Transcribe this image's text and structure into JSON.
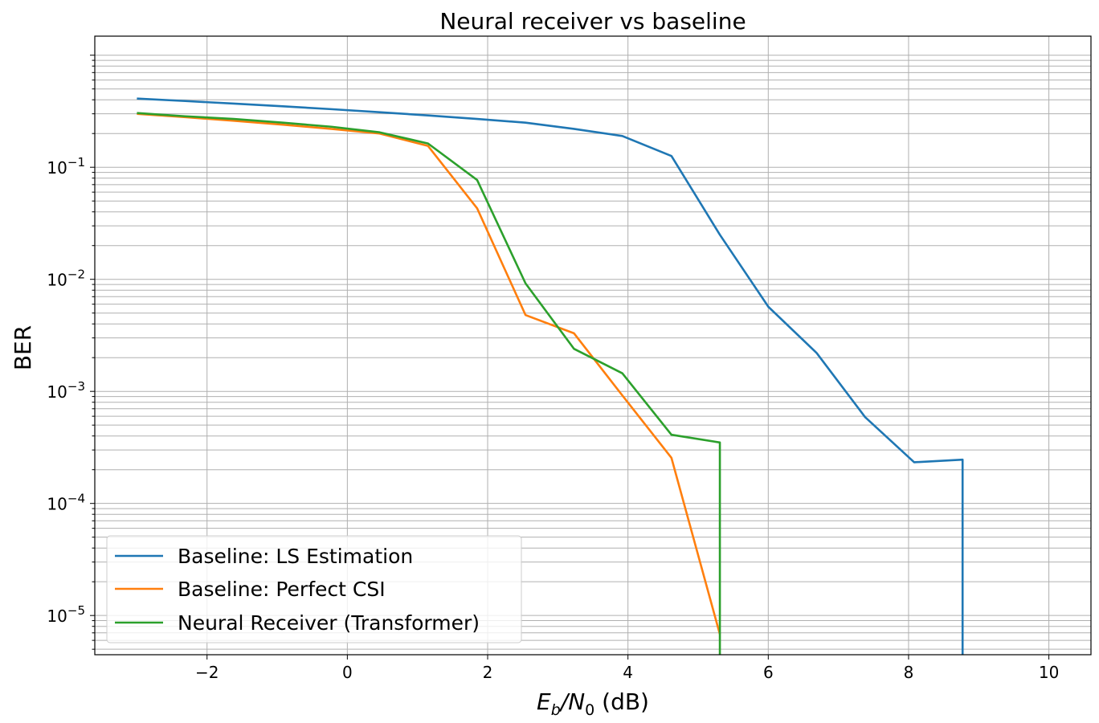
{
  "chart_data": {
    "type": "line",
    "title": "Neural receiver vs baseline",
    "xlabel": {
      "main": "E",
      "sub1": "b",
      "slash": "/N",
      "sub2": "0",
      "unit": " (dB)"
    },
    "ylabel": "BER",
    "xlim": [
      -3.6,
      10.6
    ],
    "ylim_log10": [
      -5.35,
      0.17
    ],
    "yscale": "log",
    "grid": true,
    "legend_position": "lower-left",
    "x_ticks": [
      {
        "value": -2,
        "label": "−2"
      },
      {
        "value": 0,
        "label": "0"
      },
      {
        "value": 2,
        "label": "2"
      },
      {
        "value": 4,
        "label": "4"
      },
      {
        "value": 6,
        "label": "6"
      },
      {
        "value": 8,
        "label": "8"
      },
      {
        "value": 10,
        "label": "10"
      }
    ],
    "y_ticks": [
      {
        "exp": -1,
        "base": "10",
        "sup": "−1"
      },
      {
        "exp": -2,
        "base": "10",
        "sup": "−2"
      },
      {
        "exp": -3,
        "base": "10",
        "sup": "−3"
      },
      {
        "exp": -4,
        "base": "10",
        "sup": "−4"
      },
      {
        "exp": -5,
        "base": "10",
        "sup": "−5"
      }
    ],
    "series": [
      {
        "name": "Baseline: LS Estimation",
        "color": "#1f77b4",
        "x": [
          -3.0,
          -2.31,
          -1.62,
          -0.92,
          -0.23,
          0.46,
          1.15,
          1.85,
          2.54,
          3.23,
          3.92,
          4.62,
          5.31,
          6.0,
          6.69,
          7.38,
          8.08,
          8.77,
          8.77
        ],
        "y": [
          0.41,
          0.39,
          0.37,
          0.35,
          0.33,
          0.31,
          0.29,
          0.27,
          0.25,
          0.22,
          0.19,
          0.126,
          0.025,
          0.0057,
          0.0022,
          0.00059,
          0.000233,
          0.000246,
          1e-09
        ]
      },
      {
        "name": "Baseline: Perfect CSI",
        "color": "#ff7f0e",
        "x": [
          -3.0,
          -2.31,
          -1.62,
          -0.92,
          -0.23,
          0.46,
          1.15,
          1.85,
          2.54,
          3.23,
          3.92,
          4.62,
          5.31
        ],
        "y": [
          0.3,
          0.28,
          0.26,
          0.24,
          0.22,
          0.2,
          0.155,
          0.043,
          0.0048,
          0.0033,
          0.00092,
          0.000255,
          6.8e-06
        ]
      },
      {
        "name": "Neural Receiver (Transformer)",
        "color": "#2ca02c",
        "x": [
          -3.0,
          -2.31,
          -1.62,
          -0.92,
          -0.23,
          0.46,
          1.15,
          1.85,
          2.54,
          3.23,
          3.92,
          4.62,
          5.31,
          5.31
        ],
        "y": [
          0.305,
          0.285,
          0.27,
          0.25,
          0.23,
          0.205,
          0.163,
          0.077,
          0.0092,
          0.0024,
          0.00145,
          0.00041,
          0.00035,
          1e-09
        ]
      }
    ]
  }
}
